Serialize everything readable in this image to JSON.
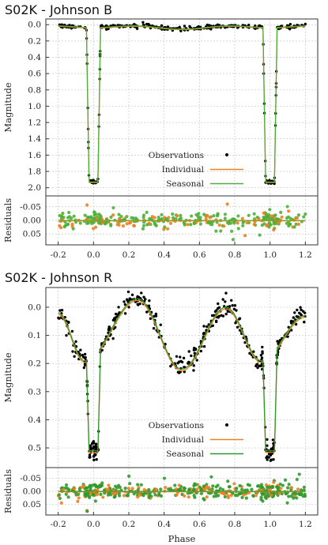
{
  "chart_data": [
    {
      "type": "scatter",
      "title": "S02K - Johnson B",
      "xlabel": "",
      "ylabel": "Magnitude",
      "residual_ylabel": "Residuals",
      "xlim": [
        -0.27,
        1.27
      ],
      "ylim": [
        2.1,
        -0.07
      ],
      "y_inverted": true,
      "yticks": [
        "0.0",
        "0.2",
        "0.4",
        "0.6",
        "0.8",
        "1.0",
        "1.2",
        "1.4",
        "1.6",
        "1.8",
        "2.0"
      ],
      "ytick_values": [
        0.0,
        0.2,
        0.4,
        0.6,
        0.8,
        1.0,
        1.2,
        1.4,
        1.6,
        1.8,
        2.0
      ],
      "residual_ylim": [
        0.09,
        -0.09
      ],
      "residual_yticks": [
        "-0.05",
        "0.00",
        "0.05"
      ],
      "residual_ytick_values": [
        -0.05,
        0.0,
        0.05
      ],
      "xticks": [
        "-0.2",
        "0.0",
        "0.2",
        "0.4",
        "0.6",
        "0.8",
        "1.0",
        "1.2"
      ],
      "xtick_values": [
        -0.2,
        0.0,
        0.2,
        0.4,
        0.6,
        0.8,
        1.0,
        1.2
      ],
      "grid": true,
      "legend_position": "lower-center",
      "series": [
        {
          "name": "Observations",
          "color": "#000000",
          "marker": "dot"
        },
        {
          "name": "Individual",
          "color": "#f08020",
          "marker": "line"
        },
        {
          "name": "Seasonal",
          "color": "#4cb03a",
          "marker": "line"
        }
      ],
      "eclipse": {
        "center": 0.0,
        "period_repeat": 1.0,
        "half_width": 0.04,
        "flat_half_width": 0.025,
        "depth": 1.93
      },
      "out_of_eclipse_level": 0.03
    },
    {
      "type": "scatter",
      "title": "S02K - Johnson R",
      "xlabel": "Phase",
      "ylabel": "Magnitude",
      "residual_ylabel": "Residuals",
      "xlim": [
        -0.27,
        1.27
      ],
      "ylim": [
        0.57,
        -0.07
      ],
      "y_inverted": true,
      "yticks": [
        "0.0",
        "0.1",
        "0.2",
        "0.3",
        "0.4",
        "0.5"
      ],
      "ytick_values": [
        0.0,
        0.1,
        0.2,
        0.3,
        0.4,
        0.5
      ],
      "residual_ylim": [
        0.09,
        -0.09
      ],
      "residual_yticks": [
        "-0.05",
        "0.00",
        "0.05"
      ],
      "residual_ytick_values": [
        -0.05,
        0.0,
        0.05
      ],
      "xticks": [
        "-0.2",
        "0.0",
        "0.2",
        "0.4",
        "0.6",
        "0.8",
        "1.0",
        "1.2"
      ],
      "xtick_values": [
        -0.2,
        0.0,
        0.2,
        0.4,
        0.6,
        0.8,
        1.0,
        1.2
      ],
      "grid": true,
      "legend_position": "lower-center",
      "series": [
        {
          "name": "Observations",
          "color": "#000000",
          "marker": "dot"
        },
        {
          "name": "Individual",
          "color": "#f08020",
          "marker": "line"
        },
        {
          "name": "Seasonal",
          "color": "#2e9a2e",
          "marker": "line"
        }
      ],
      "eclipse": {
        "center": 0.0,
        "period_repeat": 1.0,
        "half_width": 0.04,
        "flat_half_width": 0.025,
        "depth": 0.51
      },
      "light_curve_key_points": [
        {
          "x": -0.2,
          "y": 0.02
        },
        {
          "x": -0.05,
          "y": 0.19
        },
        {
          "x": 0.25,
          "y": -0.03
        },
        {
          "x": 0.5,
          "y": 0.22
        },
        {
          "x": 0.75,
          "y": 0.0
        },
        {
          "x": 0.95,
          "y": 0.19
        },
        {
          "x": 1.2,
          "y": 0.03
        }
      ]
    }
  ]
}
